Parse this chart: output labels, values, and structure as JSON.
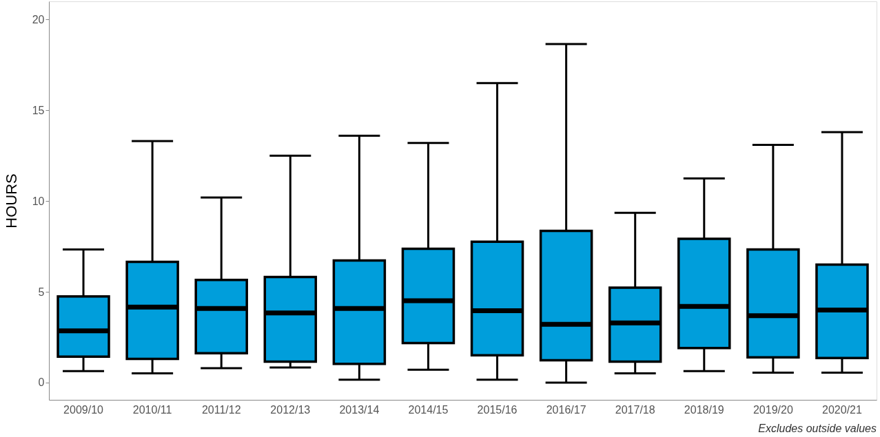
{
  "chart_data": {
    "type": "box",
    "ylabel": "HOURS",
    "categories": [
      "2009/10",
      "2010/11",
      "2011/12",
      "2012/13",
      "2013/14",
      "2014/15",
      "2015/16",
      "2016/17",
      "2017/18",
      "2018/19",
      "2019/20",
      "2020/21"
    ],
    "series": [
      {
        "color": "#009edb",
        "boxes": [
          {
            "low": 0.63,
            "q1": 1.43,
            "median": 2.85,
            "q3": 4.75,
            "high": 7.33
          },
          {
            "low": 0.51,
            "q1": 1.31,
            "median": 4.16,
            "q3": 6.65,
            "high": 13.3
          },
          {
            "low": 0.79,
            "q1": 1.62,
            "median": 4.08,
            "q3": 5.66,
            "high": 10.2
          },
          {
            "low": 0.83,
            "q1": 1.15,
            "median": 3.84,
            "q3": 5.82,
            "high": 12.5
          },
          {
            "low": 0.16,
            "q1": 1.03,
            "median": 4.08,
            "q3": 6.73,
            "high": 13.6
          },
          {
            "low": 0.71,
            "q1": 2.18,
            "median": 4.51,
            "q3": 7.37,
            "high": 13.2
          },
          {
            "low": 0.16,
            "q1": 1.5,
            "median": 3.96,
            "q3": 7.76,
            "high": 16.5
          },
          {
            "low": 0.0,
            "q1": 1.23,
            "median": 3.21,
            "q3": 8.36,
            "high": 18.65
          },
          {
            "low": 0.51,
            "q1": 1.15,
            "median": 3.29,
            "q3": 5.23,
            "high": 9.35
          },
          {
            "low": 0.63,
            "q1": 1.9,
            "median": 4.2,
            "q3": 7.92,
            "high": 11.25
          },
          {
            "low": 0.55,
            "q1": 1.39,
            "median": 3.68,
            "q3": 7.33,
            "high": 13.1
          },
          {
            "low": 0.55,
            "q1": 1.35,
            "median": 4.0,
            "q3": 6.5,
            "high": 13.8
          }
        ]
      }
    ],
    "ylim": [
      -0.95,
      21
    ],
    "yticks": [
      0,
      5,
      10,
      15,
      20
    ],
    "grid": false,
    "annotations": [
      "Excludes outside values"
    ]
  }
}
